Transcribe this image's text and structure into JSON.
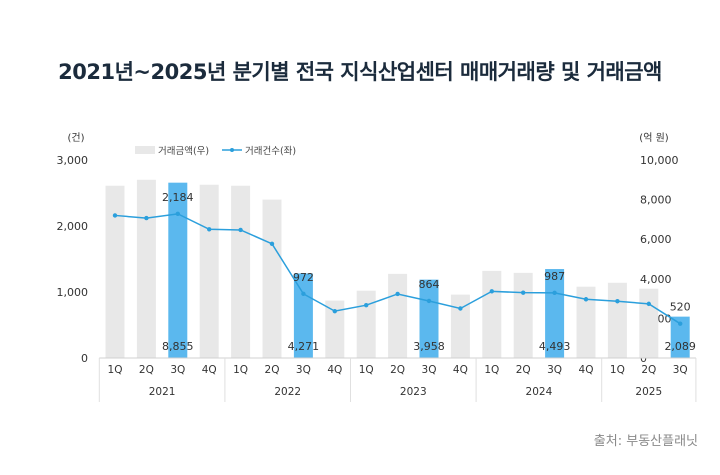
{
  "title": "2021년~2025년 분기별 전국 지식산업센터 매매거래량 및 거래금액",
  "source": "출처: 부동산플래닛",
  "chart_data": {
    "type": "bar+line",
    "years": [
      "2021",
      "2022",
      "2023",
      "2024",
      "2025"
    ],
    "categories": [
      "1Q",
      "2Q",
      "3Q",
      "4Q",
      "1Q",
      "2Q",
      "3Q",
      "4Q",
      "1Q",
      "2Q",
      "3Q",
      "4Q",
      "1Q",
      "2Q",
      "3Q",
      "4Q",
      "1Q",
      "2Q",
      "3Q"
    ],
    "year_groups": [
      4,
      4,
      4,
      4,
      3
    ],
    "left_axis": {
      "unit": "(건)",
      "ylim": [
        0,
        3000
      ],
      "ticks": [
        "0",
        "1,000",
        "2,000",
        "3,000"
      ]
    },
    "right_axis": {
      "unit": "(억 원)",
      "ylim": [
        0,
        10000
      ],
      "ticks": [
        "0",
        "2,000",
        "4,000",
        "6,000",
        "8,000",
        "10,000"
      ]
    },
    "legend": {
      "placement": "top-left",
      "bar_label": "거래금액(우)",
      "line_label": "거래건수(좌)"
    },
    "series": [
      {
        "name": "거래금액(우)",
        "kind": "bar",
        "axis": "right",
        "values": [
          8700,
          9000,
          8855,
          8750,
          8700,
          8000,
          4271,
          2900,
          3400,
          4250,
          3958,
          3200,
          4400,
          4300,
          4493,
          3600,
          3800,
          3500,
          2089
        ],
        "highlight": [
          2,
          6,
          10,
          14,
          18
        ],
        "labels": {
          "2": "8,855",
          "6": "4,271",
          "10": "3,958",
          "14": "4,493",
          "18": "2,089"
        }
      },
      {
        "name": "거래건수(좌)",
        "kind": "line",
        "axis": "left",
        "values": [
          2160,
          2120,
          2184,
          1950,
          1940,
          1730,
          972,
          710,
          800,
          970,
          864,
          750,
          1010,
          990,
          987,
          890,
          860,
          820,
          520
        ],
        "labels": {
          "2": "2,184",
          "6": "972",
          "10": "864",
          "14": "987",
          "18": "520"
        }
      }
    ],
    "colors": {
      "bar": "#e8e8e8",
      "bar_highlight": "#5bb8ee",
      "line": "#2b9fdc",
      "title": "#1b2b3c"
    },
    "grid": false
  }
}
